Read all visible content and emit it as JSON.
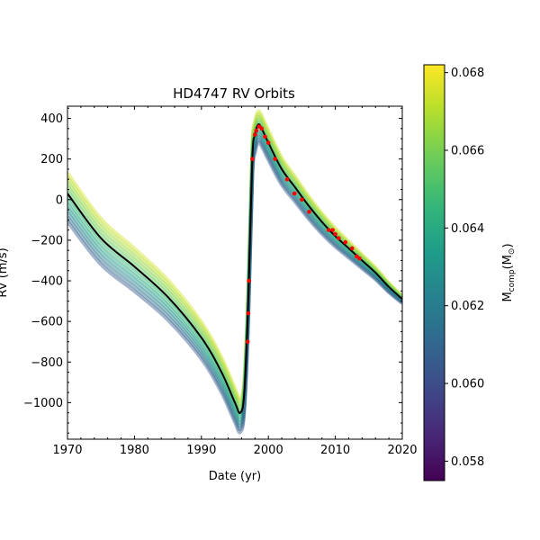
{
  "chart_data": {
    "type": "line",
    "title": "HD4747 RV Orbits",
    "xlabel": "Date (yr)",
    "ylabel": "RV (m/s)",
    "xlim": [
      1970,
      2020
    ],
    "ylim": [
      -1180,
      460
    ],
    "x_ticks": [
      1970,
      1980,
      1990,
      2000,
      2010,
      2020
    ],
    "x_tick_labels": [
      "1970",
      "1980",
      "1990",
      "2000",
      "2010",
      "2020"
    ],
    "y_ticks": [
      400,
      200,
      0,
      -200,
      -400,
      -600,
      -800,
      -1000
    ],
    "y_tick_labels": [
      "400",
      "200",
      "0",
      "−200",
      "−400",
      "−600",
      "−800",
      "−1000"
    ],
    "grid": false,
    "best_fit_color": "#000000",
    "data_point_color": "#ff0000",
    "orbit_offsets_ms": [
      -70,
      -55,
      -40,
      -25,
      -10,
      5,
      20,
      35,
      50,
      65,
      80,
      95
    ],
    "orbit_masses": [
      0.0675,
      0.067,
      0.0665,
      0.066,
      0.0655,
      0.065,
      0.0645,
      0.0638,
      0.063,
      0.0622,
      0.0614,
      0.0605
    ],
    "best_fit": {
      "x": [
        1970,
        1975,
        1980,
        1985,
        1990,
        1993,
        1995,
        1995.8,
        1996.4,
        1997,
        1997.6,
        1998,
        1998.5,
        1999,
        2000,
        2002,
        2004,
        2006,
        2008,
        2010,
        2012,
        2014,
        2016,
        2018,
        2020
      ],
      "y": [
        30,
        -190,
        -330,
        -480,
        -680,
        -850,
        -1000,
        -1050,
        -950,
        -500,
        200,
        320,
        370,
        350,
        280,
        150,
        60,
        -30,
        -110,
        -180,
        -240,
        -300,
        -360,
        -430,
        -490
      ]
    },
    "rv_data": {
      "x": [
        1996.9,
        1997.0,
        1997.1,
        1997.6,
        1998.0,
        1998.2,
        1998.6,
        1999.0,
        1999.5,
        2000.0,
        2001.0,
        2002.8,
        2003.9,
        2005.0,
        2006.1,
        2009.0,
        2009.6,
        2010.0,
        2010.5,
        2011.5,
        2012.5,
        2013.2,
        2013.6
      ],
      "y": [
        -700,
        -560,
        -400,
        200,
        320,
        340,
        360,
        350,
        310,
        280,
        200,
        100,
        30,
        0,
        -60,
        -150,
        -150,
        -170,
        -190,
        -210,
        -240,
        -280,
        -290
      ]
    },
    "colorbar": {
      "label": "M comp(M⊙)",
      "label_main": "M",
      "label_sub": "comp",
      "label_paren": "(M",
      "label_sun_sub": "⊙",
      "label_close": ")",
      "range": [
        0.0575,
        0.0682
      ],
      "ticks": [
        0.058,
        0.06,
        0.062,
        0.064,
        0.066,
        0.068
      ],
      "tick_labels": [
        "0.058",
        "0.060",
        "0.062",
        "0.064",
        "0.066",
        "0.068"
      ],
      "colormap": "viridis"
    }
  }
}
